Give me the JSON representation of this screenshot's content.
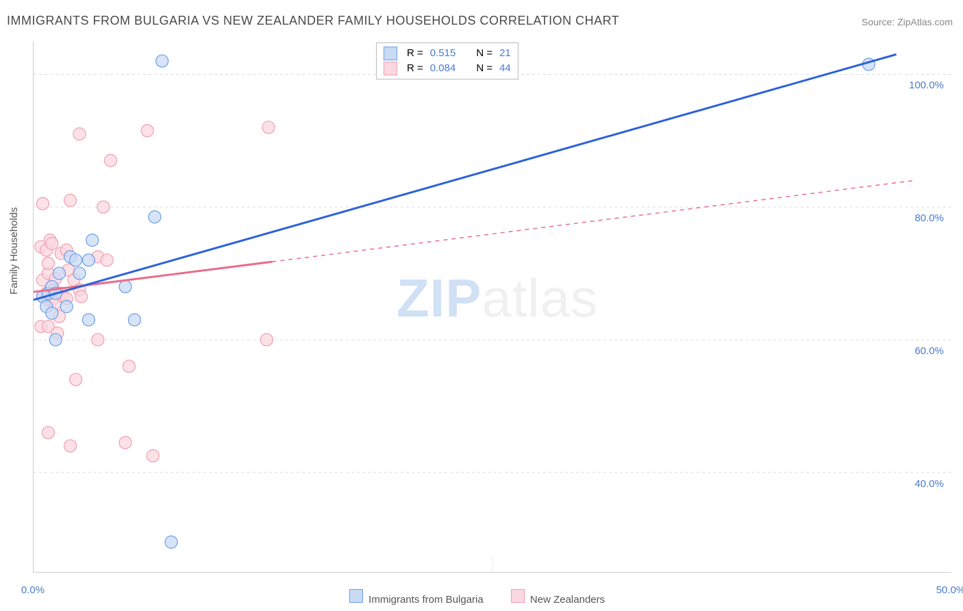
{
  "title": "IMMIGRANTS FROM BULGARIA VS NEW ZEALANDER FAMILY HOUSEHOLDS CORRELATION CHART",
  "source_label": "Source: ZipAtlas.com",
  "watermark": {
    "part1": "ZIP",
    "part2": "atlas"
  },
  "ylabel": "Family Households",
  "chart": {
    "type": "scatter_with_regression",
    "xlim": [
      0,
      50
    ],
    "ylim": [
      25,
      105
    ],
    "x_ticks": [
      0,
      25,
      50
    ],
    "x_tick_labels": [
      "0.0%",
      "",
      "50.0%"
    ],
    "y_ticks": [
      40,
      60,
      80,
      100
    ],
    "y_tick_labels": [
      "40.0%",
      "60.0%",
      "80.0%",
      "100.0%"
    ],
    "grid_color": "#dddddd",
    "background_color": "#ffffff",
    "series": [
      {
        "name": "Immigrants from Bulgaria",
        "color_fill": "#c9daf4",
        "color_stroke": "#6a9de8",
        "line_color": "#2b62d9",
        "line_width": 3,
        "marker_radius": 9,
        "R": "0.515",
        "N": "21",
        "points": [
          [
            0.5,
            66.5
          ],
          [
            0.7,
            65
          ],
          [
            0.8,
            67
          ],
          [
            1.0,
            64
          ],
          [
            1.0,
            68
          ],
          [
            1.2,
            60
          ],
          [
            1.2,
            67
          ],
          [
            1.4,
            70
          ],
          [
            1.8,
            65
          ],
          [
            2.0,
            72.5
          ],
          [
            2.3,
            72
          ],
          [
            2.5,
            70
          ],
          [
            3.0,
            63
          ],
          [
            3.0,
            72
          ],
          [
            3.2,
            75
          ],
          [
            5.0,
            68
          ],
          [
            5.5,
            63
          ],
          [
            6.6,
            78.5
          ],
          [
            7.0,
            102
          ],
          [
            7.5,
            29.5
          ],
          [
            45.5,
            101.5
          ]
        ],
        "trend": {
          "x1": 0,
          "y1": 66,
          "x2": 47,
          "y2": 103
        },
        "trend_solid_to_x": 47
      },
      {
        "name": "New Zealanders",
        "color_fill": "#fbd7df",
        "color_stroke": "#f09eb0",
        "line_color": "#e86d8a",
        "line_width": 3,
        "marker_radius": 9,
        "R": "0.084",
        "N": "44",
        "points": [
          [
            0.4,
            62
          ],
          [
            0.4,
            74
          ],
          [
            0.5,
            66.5
          ],
          [
            0.5,
            69
          ],
          [
            0.5,
            80.5
          ],
          [
            0.7,
            67
          ],
          [
            0.7,
            73.5
          ],
          [
            0.8,
            46
          ],
          [
            0.8,
            62
          ],
          [
            0.8,
            66
          ],
          [
            0.8,
            70
          ],
          [
            0.8,
            71.5
          ],
          [
            0.9,
            75
          ],
          [
            1.0,
            66
          ],
          [
            1.0,
            74.5
          ],
          [
            1.1,
            67.5
          ],
          [
            1.2,
            65.5
          ],
          [
            1.2,
            69.2
          ],
          [
            1.3,
            61
          ],
          [
            1.4,
            63.5
          ],
          [
            1.5,
            67
          ],
          [
            1.5,
            73
          ],
          [
            1.6,
            66.5
          ],
          [
            1.8,
            66.2
          ],
          [
            1.8,
            73.5
          ],
          [
            1.9,
            70.5
          ],
          [
            2.0,
            44
          ],
          [
            2.0,
            81
          ],
          [
            2.2,
            69
          ],
          [
            2.3,
            54
          ],
          [
            2.5,
            67.5
          ],
          [
            2.5,
            91
          ],
          [
            2.6,
            66.5
          ],
          [
            3.5,
            60
          ],
          [
            3.5,
            72.5
          ],
          [
            3.8,
            80
          ],
          [
            4.0,
            72
          ],
          [
            4.2,
            87
          ],
          [
            5.0,
            44.5
          ],
          [
            5.2,
            56
          ],
          [
            6.2,
            91.5
          ],
          [
            6.5,
            42.5
          ],
          [
            12.7,
            60
          ],
          [
            12.8,
            92
          ]
        ],
        "trend": {
          "x1": 0,
          "y1": 67.2,
          "x2": 48,
          "y2": 84
        },
        "trend_solid_to_x": 13
      }
    ]
  },
  "legend_top": {
    "rows": [
      {
        "swatch_fill": "#c9daf4",
        "swatch_stroke": "#6a9de8",
        "r_label": "R =",
        "r_val": "0.515",
        "n_label": "N =",
        "n_val": "21"
      },
      {
        "swatch_fill": "#fbd7df",
        "swatch_stroke": "#f09eb0",
        "r_label": "R =",
        "r_val": "0.084",
        "n_label": "N =",
        "n_val": "44"
      }
    ]
  },
  "legend_bottom": {
    "items": [
      {
        "swatch_fill": "#c9daf4",
        "swatch_stroke": "#6a9de8",
        "label": "Immigrants from Bulgaria"
      },
      {
        "swatch_fill": "#fbd7df",
        "swatch_stroke": "#f09eb0",
        "label": "New Zealanders"
      }
    ]
  }
}
